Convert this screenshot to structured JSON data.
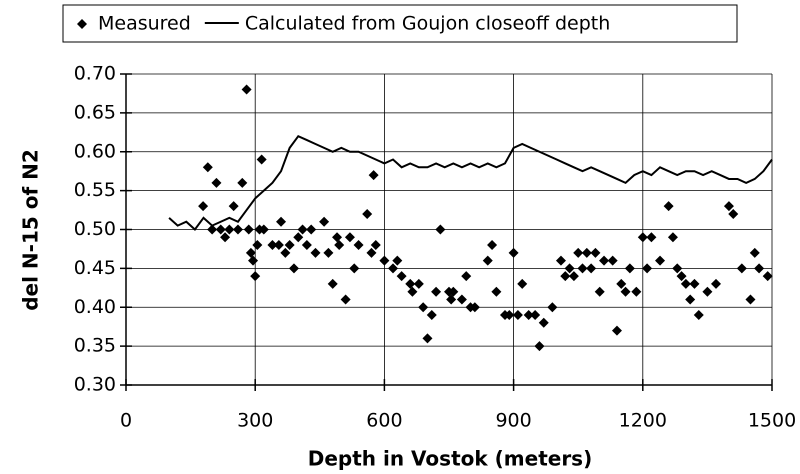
{
  "chart_data": {
    "type": "scatter",
    "xlabel": "Depth in Vostok (meters)",
    "ylabel": "del N-15 of N2",
    "xlim": [
      0,
      1500
    ],
    "ylim": [
      0.3,
      0.7
    ],
    "xticks": [
      0,
      300,
      600,
      900,
      1200,
      1500
    ],
    "yticks": [
      {
        "value": 0.3,
        "label": "0.30"
      },
      0.35,
      {
        "value": 0.4,
        "label": "0.40"
      },
      0.45,
      {
        "value": 0.5,
        "label": "0.50"
      },
      0.55,
      {
        "value": 0.6,
        "label": "0.60"
      },
      0.65,
      {
        "value": 0.7,
        "label": "0.70"
      }
    ],
    "grid": true,
    "legend": "top",
    "series": [
      {
        "name": "Measured",
        "color": "#000000",
        "style": "markers",
        "x": [
          179,
          190,
          200,
          210,
          220,
          230,
          240,
          250,
          260,
          270,
          280,
          285,
          290,
          295,
          300,
          305,
          310,
          315,
          320,
          340,
          355,
          360,
          370,
          380,
          390,
          400,
          410,
          420,
          430,
          440,
          460,
          470,
          480,
          490,
          495,
          510,
          520,
          530,
          540,
          560,
          570,
          575,
          580,
          600,
          620,
          630,
          640,
          660,
          665,
          680,
          690,
          700,
          710,
          720,
          730,
          750,
          755,
          760,
          780,
          790,
          800,
          810,
          840,
          850,
          860,
          880,
          890,
          900,
          910,
          920,
          935,
          950,
          960,
          970,
          990,
          1010,
          1020,
          1030,
          1040,
          1050,
          1060,
          1070,
          1080,
          1090,
          1100,
          1110,
          1130,
          1140,
          1150,
          1160,
          1170,
          1185,
          1200,
          1210,
          1220,
          1240,
          1260,
          1270,
          1280,
          1290,
          1300,
          1310,
          1320,
          1330,
          1350,
          1370,
          1400,
          1410,
          1430,
          1450,
          1460,
          1470,
          1490
        ],
        "values": [
          0.53,
          0.58,
          0.5,
          0.56,
          0.5,
          0.49,
          0.5,
          0.53,
          0.5,
          0.56,
          0.68,
          0.5,
          0.47,
          0.46,
          0.44,
          0.48,
          0.5,
          0.59,
          0.5,
          0.48,
          0.48,
          0.51,
          0.47,
          0.48,
          0.45,
          0.49,
          0.5,
          0.48,
          0.5,
          0.47,
          0.51,
          0.47,
          0.43,
          0.49,
          0.48,
          0.41,
          0.49,
          0.45,
          0.48,
          0.52,
          0.47,
          0.57,
          0.48,
          0.46,
          0.45,
          0.46,
          0.44,
          0.43,
          0.42,
          0.43,
          0.4,
          0.36,
          0.39,
          0.42,
          0.5,
          0.42,
          0.41,
          0.42,
          0.41,
          0.44,
          0.4,
          0.4,
          0.46,
          0.48,
          0.42,
          0.39,
          0.39,
          0.47,
          0.39,
          0.43,
          0.39,
          0.39,
          0.35,
          0.38,
          0.4,
          0.46,
          0.44,
          0.45,
          0.44,
          0.47,
          0.45,
          0.47,
          0.45,
          0.47,
          0.42,
          0.46,
          0.46,
          0.37,
          0.43,
          0.42,
          0.45,
          0.42,
          0.49,
          0.45,
          0.49,
          0.46,
          0.53,
          0.49,
          0.45,
          0.44,
          0.43,
          0.41,
          0.43,
          0.39,
          0.42,
          0.43,
          0.53,
          0.52,
          0.45,
          0.41,
          0.47,
          0.45,
          0.44
        ]
      },
      {
        "name": "Calculated from Goujon closeoff depth",
        "color": "#000000",
        "style": "line",
        "x": [
          100,
          120,
          140,
          160,
          180,
          200,
          220,
          240,
          260,
          280,
          300,
          320,
          340,
          360,
          380,
          400,
          420,
          440,
          460,
          480,
          500,
          520,
          540,
          560,
          580,
          600,
          620,
          640,
          660,
          680,
          700,
          720,
          740,
          760,
          780,
          800,
          820,
          840,
          860,
          880,
          900,
          920,
          940,
          960,
          980,
          1000,
          1020,
          1040,
          1060,
          1080,
          1100,
          1120,
          1140,
          1160,
          1180,
          1200,
          1220,
          1240,
          1260,
          1280,
          1300,
          1320,
          1340,
          1360,
          1380,
          1400,
          1420,
          1440,
          1460,
          1480,
          1500
        ],
        "values": [
          0.515,
          0.505,
          0.51,
          0.5,
          0.515,
          0.505,
          0.51,
          0.515,
          0.51,
          0.525,
          0.54,
          0.55,
          0.56,
          0.575,
          0.605,
          0.62,
          0.615,
          0.61,
          0.605,
          0.6,
          0.605,
          0.6,
          0.6,
          0.595,
          0.59,
          0.585,
          0.59,
          0.58,
          0.585,
          0.58,
          0.58,
          0.585,
          0.58,
          0.585,
          0.58,
          0.585,
          0.58,
          0.585,
          0.58,
          0.585,
          0.605,
          0.61,
          0.605,
          0.6,
          0.595,
          0.59,
          0.585,
          0.58,
          0.575,
          0.58,
          0.575,
          0.57,
          0.565,
          0.56,
          0.57,
          0.575,
          0.57,
          0.58,
          0.575,
          0.57,
          0.575,
          0.575,
          0.57,
          0.575,
          0.57,
          0.565,
          0.565,
          0.56,
          0.565,
          0.575,
          0.59
        ]
      }
    ]
  }
}
